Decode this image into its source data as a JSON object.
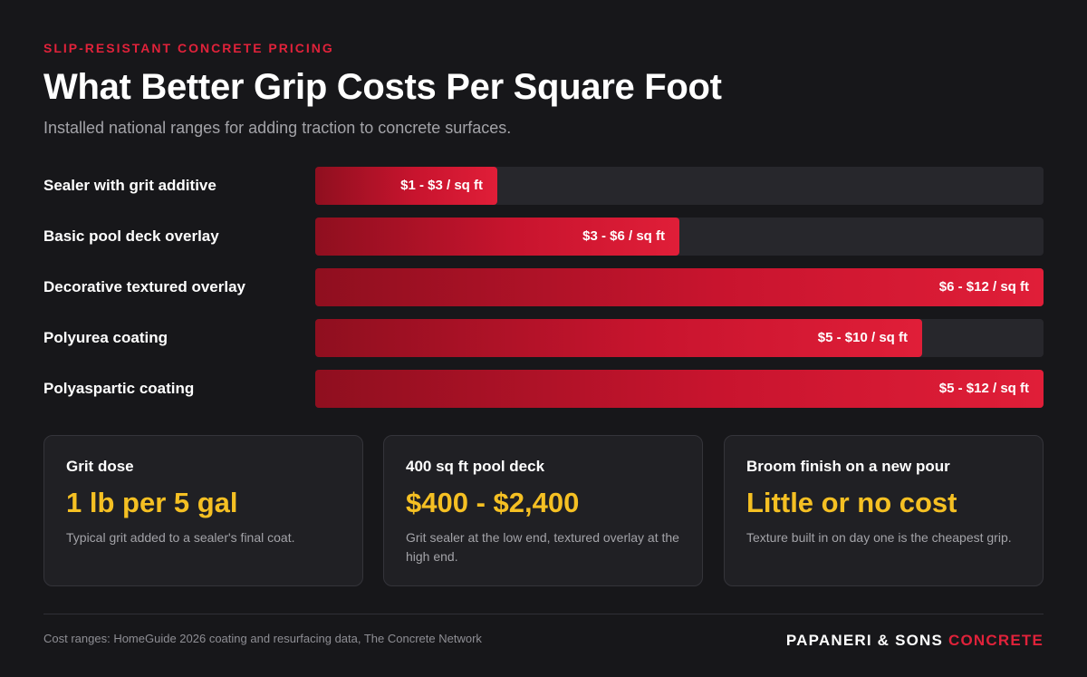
{
  "header": {
    "kicker": "SLIP-RESISTANT CONCRETE PRICING",
    "title": "What Better Grip Costs Per Square Foot",
    "subtitle": "Installed national ranges for adding traction to concrete surfaces."
  },
  "chart_data": {
    "type": "bar",
    "orientation": "horizontal",
    "unit": "$ / sq ft",
    "xlim": [
      0,
      12
    ],
    "categories": [
      "Sealer with grit additive",
      "Basic pool deck overlay",
      "Decorative textured overlay",
      "Polyurea coating",
      "Polyaspartic coating"
    ],
    "series": [
      {
        "low": [
          1,
          3,
          6,
          5,
          5
        ],
        "high": [
          3,
          6,
          12,
          10,
          12
        ]
      }
    ],
    "data_labels": [
      "$1 - $3 / sq ft",
      "$3 - $6 / sq ft",
      "$6 - $12 / sq ft",
      "$5 - $10 / sq ft",
      "$5 - $12 / sq ft"
    ],
    "colors": {
      "bar_start": "#8f0f1f",
      "bar_end": "#e01e38",
      "track": "#27272c"
    }
  },
  "cards": [
    {
      "label": "Grit dose",
      "value": "1 lb per 5 gal",
      "note": "Typical grit added to a sealer's final coat."
    },
    {
      "label": "400 sq ft pool deck",
      "value": "$400 - $2,400",
      "note": "Grit sealer at the low end, textured overlay at the high end."
    },
    {
      "label": "Broom finish on a new pour",
      "value": "Little or no cost",
      "note": "Texture built in on day one is the cheapest grip."
    }
  ],
  "footer": {
    "source": "Cost ranges: HomeGuide 2026 coating and resurfacing data, The Concrete Network",
    "brand_main": "PAPANERI & SONS",
    "brand_accent": "CONCRETE"
  },
  "colors": {
    "background": "#17171a",
    "accent_red": "#e0223a",
    "accent_yellow": "#f5c023"
  }
}
